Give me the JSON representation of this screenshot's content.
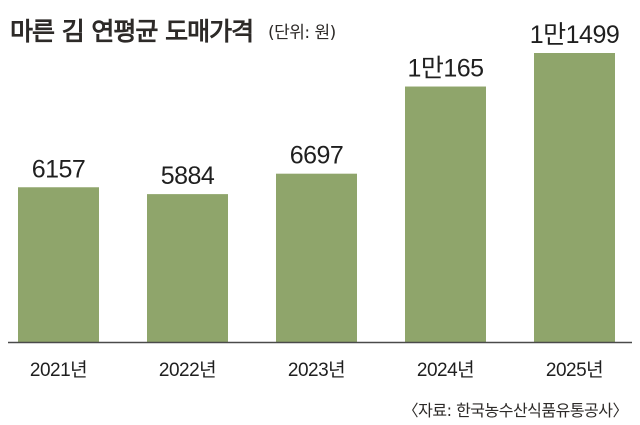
{
  "header": {
    "title": "마른 김 연평균 도매가격",
    "unit": "(단위: 원)"
  },
  "source": "〈자료: 한국농수산식품유통공사〉",
  "colors": {
    "bar": "#8fa56b",
    "baseline": "#4a4a4a"
  },
  "chart_data": {
    "type": "bar",
    "title": "마른 김 연평균 도매가격",
    "ylabel": "",
    "xlabel": "",
    "ylim": [
      0,
      11499
    ],
    "grid": false,
    "categories": [
      "2021년",
      "2022년",
      "2023년",
      "2024년",
      "2025년"
    ],
    "values": [
      6157,
      5884,
      6697,
      10165,
      11499
    ],
    "value_labels": [
      "6157",
      "5884",
      "6697",
      "1만165",
      "1만1499"
    ]
  }
}
